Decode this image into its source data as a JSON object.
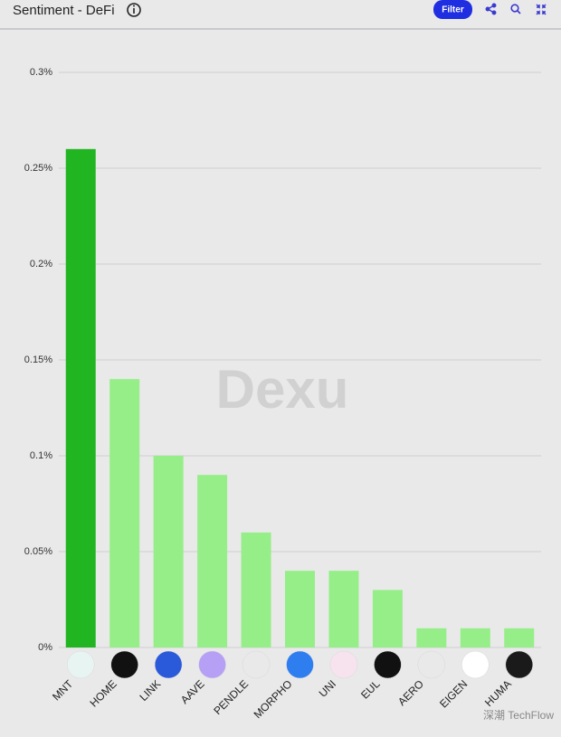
{
  "title": "Sentiment - DeFi",
  "filter_button": "Filter",
  "watermark": "Dexu",
  "credit": "深潮 TechFlow",
  "chart_data": {
    "type": "bar",
    "categories": [
      "MNT",
      "HOME",
      "LINK",
      "AAVE",
      "PENDLE",
      "MORPHO",
      "UNI",
      "EUL",
      "AERO",
      "EIGEN",
      "HUMA"
    ],
    "values": [
      0.26,
      0.14,
      0.1,
      0.09,
      0.06,
      0.04,
      0.04,
      0.03,
      0.01,
      0.01,
      0.01
    ],
    "colors": [
      "#22b522",
      "#96ee88",
      "#96ee88",
      "#96ee88",
      "#96ee88",
      "#96ee88",
      "#96ee88",
      "#96ee88",
      "#96ee88",
      "#96ee88",
      "#96ee88"
    ],
    "ylim": [
      0,
      0.3
    ],
    "yticks": [
      {
        "value": 0,
        "label": "0%"
      },
      {
        "value": 0.05,
        "label": "0.05%"
      },
      {
        "value": 0.1,
        "label": "0.1%"
      },
      {
        "value": 0.15,
        "label": "0.15%"
      },
      {
        "value": 0.2,
        "label": "0.2%"
      },
      {
        "value": 0.25,
        "label": "0.25%"
      },
      {
        "value": 0.3,
        "label": "0.3%"
      }
    ],
    "grid": true
  }
}
